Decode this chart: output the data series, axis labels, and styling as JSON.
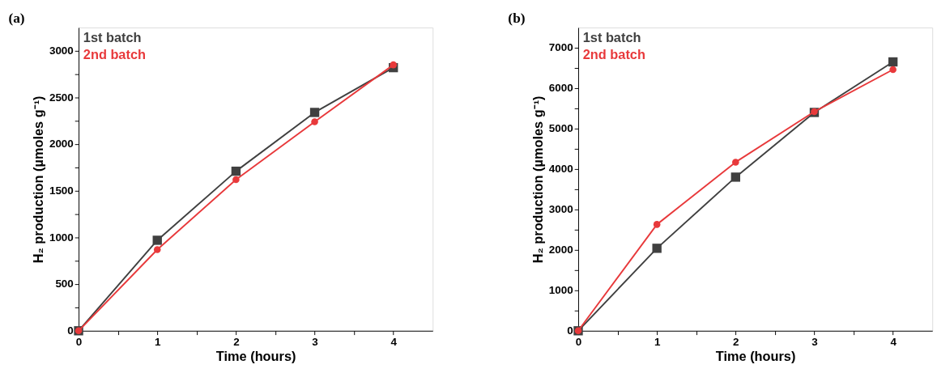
{
  "chart_data": [
    {
      "type": "line",
      "title": "(a)",
      "xlabel": "Time (hours)",
      "ylabel": "H₂ production (µmoles g⁻¹)",
      "legend": "top left",
      "xlim": [
        0,
        4.5
      ],
      "ylim": [
        0,
        3250
      ],
      "xticks": [
        0,
        {
          "value": 0.5,
          "label": null
        },
        1,
        {
          "value": 1.5,
          "label": null
        },
        2,
        {
          "value": 2.5,
          "label": null
        },
        3,
        {
          "value": 3.5,
          "label": null
        },
        4
      ],
      "yticks": [
        0,
        {
          "value": 250,
          "label": null
        },
        500,
        {
          "value": 750,
          "label": null
        },
        1000,
        {
          "value": 1250,
          "label": null
        },
        1500,
        {
          "value": 1750,
          "label": null
        },
        2000,
        {
          "value": 2250,
          "label": null
        },
        2500,
        {
          "value": 2750,
          "label": null
        },
        3000
      ],
      "x": [
        0,
        1,
        2,
        3,
        4
      ],
      "series": [
        {
          "name": "1st batch",
          "color": "#404040",
          "marker": "square",
          "values": [
            0,
            970,
            1710,
            2340,
            2820
          ]
        },
        {
          "name": "2nd batch",
          "color": "#e8393b",
          "marker": "circle",
          "values": [
            0,
            870,
            1620,
            2240,
            2850
          ]
        }
      ]
    },
    {
      "type": "line",
      "title": "(b)",
      "xlabel": "Time (hours)",
      "ylabel": "H₂ production (µmoles g⁻¹)",
      "legend": "top left",
      "xlim": [
        0,
        4.5
      ],
      "ylim": [
        0,
        7500
      ],
      "xticks": [
        0,
        {
          "value": 0.5,
          "label": null
        },
        1,
        {
          "value": 1.5,
          "label": null
        },
        2,
        {
          "value": 2.5,
          "label": null
        },
        3,
        {
          "value": 3.5,
          "label": null
        },
        4
      ],
      "yticks": [
        0,
        {
          "value": 500,
          "label": null
        },
        1000,
        {
          "value": 1500,
          "label": null
        },
        2000,
        {
          "value": 2500,
          "label": null
        },
        3000,
        {
          "value": 3500,
          "label": null
        },
        4000,
        {
          "value": 4500,
          "label": null
        },
        5000,
        {
          "value": 5500,
          "label": null
        },
        6000,
        {
          "value": 6500,
          "label": null
        },
        7000
      ],
      "x": [
        0,
        1,
        2,
        3,
        4
      ],
      "series": [
        {
          "name": "1st batch",
          "color": "#404040",
          "marker": "square",
          "values": [
            0,
            2040,
            3800,
            5400,
            6650
          ]
        },
        {
          "name": "2nd batch",
          "color": "#e8393b",
          "marker": "circle",
          "values": [
            0,
            2630,
            4170,
            5420,
            6460
          ]
        }
      ]
    }
  ]
}
